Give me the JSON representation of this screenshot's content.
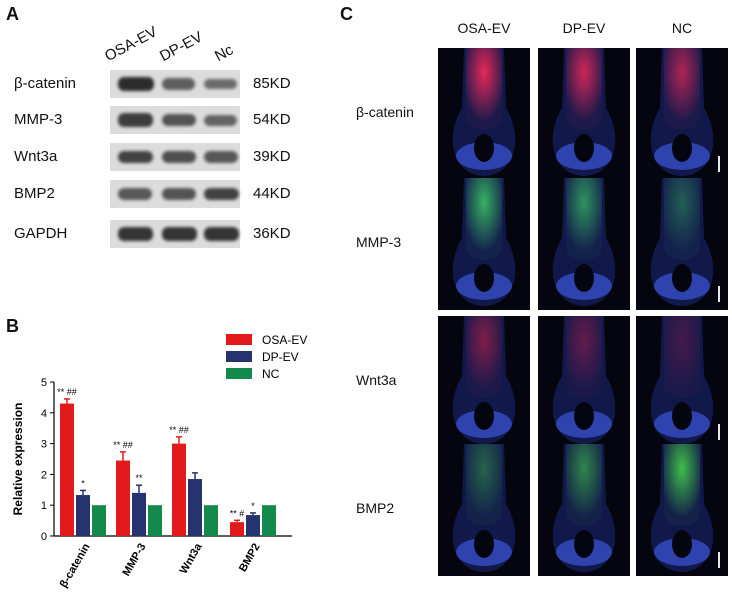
{
  "panel_a": {
    "letter": "A",
    "lanes": [
      "OSA-EV",
      "DP-EV",
      "Nc"
    ],
    "rows": [
      {
        "protein": "β-catenin",
        "kd": "85KD",
        "intensity": [
          1.0,
          0.55,
          0.45
        ]
      },
      {
        "protein": "MMP-3",
        "kd": "54KD",
        "intensity": [
          0.85,
          0.65,
          0.5
        ]
      },
      {
        "protein": "Wnt3a",
        "kd": "39KD",
        "intensity": [
          0.8,
          0.7,
          0.62
        ]
      },
      {
        "protein": "BMP2",
        "kd": "44KD",
        "intensity": [
          0.6,
          0.65,
          0.8
        ]
      },
      {
        "protein": "GAPDH",
        "kd": "36KD",
        "intensity": [
          0.9,
          0.9,
          0.9
        ]
      }
    ]
  },
  "panel_b": {
    "letter": "B",
    "legend": [
      {
        "name": "OSA-EV",
        "color": "#e31a1c"
      },
      {
        "name": "DP-EV",
        "color": "#25346e"
      },
      {
        "name": "NC",
        "color": "#138a4b"
      }
    ]
  },
  "chart_data": {
    "type": "bar",
    "categories": [
      "β-catenin",
      "MMP-3",
      "Wnt3a",
      "BMP2"
    ],
    "series": [
      {
        "name": "OSA-EV",
        "values": [
          4.3,
          2.45,
          3.0,
          0.45
        ],
        "errors": [
          0.15,
          0.28,
          0.22,
          0.06
        ],
        "annotations": [
          "** ##",
          "** ##",
          "** ##",
          "** #"
        ],
        "color": "#e31a1c"
      },
      {
        "name": "DP-EV",
        "values": [
          1.33,
          1.4,
          1.85,
          0.68
        ],
        "errors": [
          0.15,
          0.25,
          0.2,
          0.07
        ],
        "annotations": [
          "*",
          "**",
          "",
          "*"
        ],
        "color": "#25346e"
      },
      {
        "name": "NC",
        "values": [
          1.0,
          1.0,
          1.0,
          1.0
        ],
        "errors": [
          0,
          0,
          0,
          0
        ],
        "annotations": [
          "",
          "",
          "",
          ""
        ],
        "color": "#138a4b"
      }
    ],
    "ylabel": "Relative expression",
    "xlabel": "",
    "ylim": [
      0,
      5
    ],
    "yticks": [
      0,
      1,
      2,
      3,
      4,
      5
    ],
    "legend_position": "top-right"
  },
  "panel_c": {
    "letter": "C",
    "columns": [
      "OSA-EV",
      "DP-EV",
      "NC"
    ],
    "rows": [
      {
        "label": "β-catenin",
        "stain_color": "#ff2a5a",
        "intensity": [
          1.0,
          0.85,
          0.7
        ]
      },
      {
        "label": "MMP-3",
        "stain_color": "#3fd06a",
        "intensity": [
          0.9,
          0.7,
          0.3
        ]
      },
      {
        "label": "Wnt3a",
        "stain_color": "#d8204a",
        "intensity": [
          0.55,
          0.35,
          0.15
        ]
      },
      {
        "label": "BMP2",
        "stain_color": "#44d04a",
        "intensity": [
          0.35,
          0.6,
          1.0
        ]
      }
    ]
  }
}
